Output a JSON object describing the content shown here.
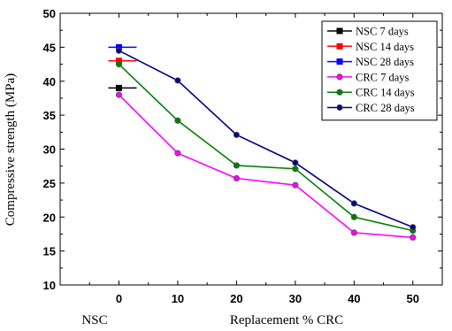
{
  "chart_data": {
    "type": "line",
    "title": "",
    "xlabel": "Replacement % CRC",
    "ylabel": "Compressive strength (MPa)",
    "x_category_label": "NSC",
    "xlim": [
      -10,
      55
    ],
    "ylim": [
      10,
      50
    ],
    "xticks": [
      0,
      10,
      20,
      30,
      40,
      50
    ],
    "yticks": [
      10,
      15,
      20,
      25,
      30,
      35,
      40,
      45,
      50
    ],
    "grid": false,
    "legend_position": "top-right",
    "series": [
      {
        "name": "NSC 7 days",
        "color": "#000000",
        "marker": "square",
        "kind": "nsc",
        "x": [
          0
        ],
        "y": [
          39.0
        ]
      },
      {
        "name": "NSC 14 days",
        "color": "#ff0000",
        "marker": "square",
        "kind": "nsc",
        "x": [
          0
        ],
        "y": [
          43.0
        ]
      },
      {
        "name": "NSC 28 days",
        "color": "#0000ff",
        "marker": "square",
        "kind": "nsc",
        "x": [
          0
        ],
        "y": [
          45.0
        ]
      },
      {
        "name": "CRC 7 days",
        "color": "#ff00ff",
        "marker": "circle",
        "kind": "crc",
        "x": [
          0,
          10,
          20,
          30,
          40,
          50
        ],
        "y": [
          38.0,
          29.4,
          25.7,
          24.7,
          17.7,
          17.0
        ]
      },
      {
        "name": "CRC 14 days",
        "color": "#008000",
        "marker": "circle",
        "kind": "crc",
        "x": [
          0,
          10,
          20,
          30,
          40,
          50
        ],
        "y": [
          42.5,
          34.2,
          27.6,
          27.1,
          20.0,
          18.0
        ]
      },
      {
        "name": "CRC 28 days",
        "color": "#000080",
        "marker": "circle",
        "kind": "crc",
        "x": [
          0,
          10,
          20,
          30,
          40,
          50
        ],
        "y": [
          44.5,
          40.1,
          32.1,
          28.0,
          22.0,
          18.5
        ]
      }
    ]
  }
}
